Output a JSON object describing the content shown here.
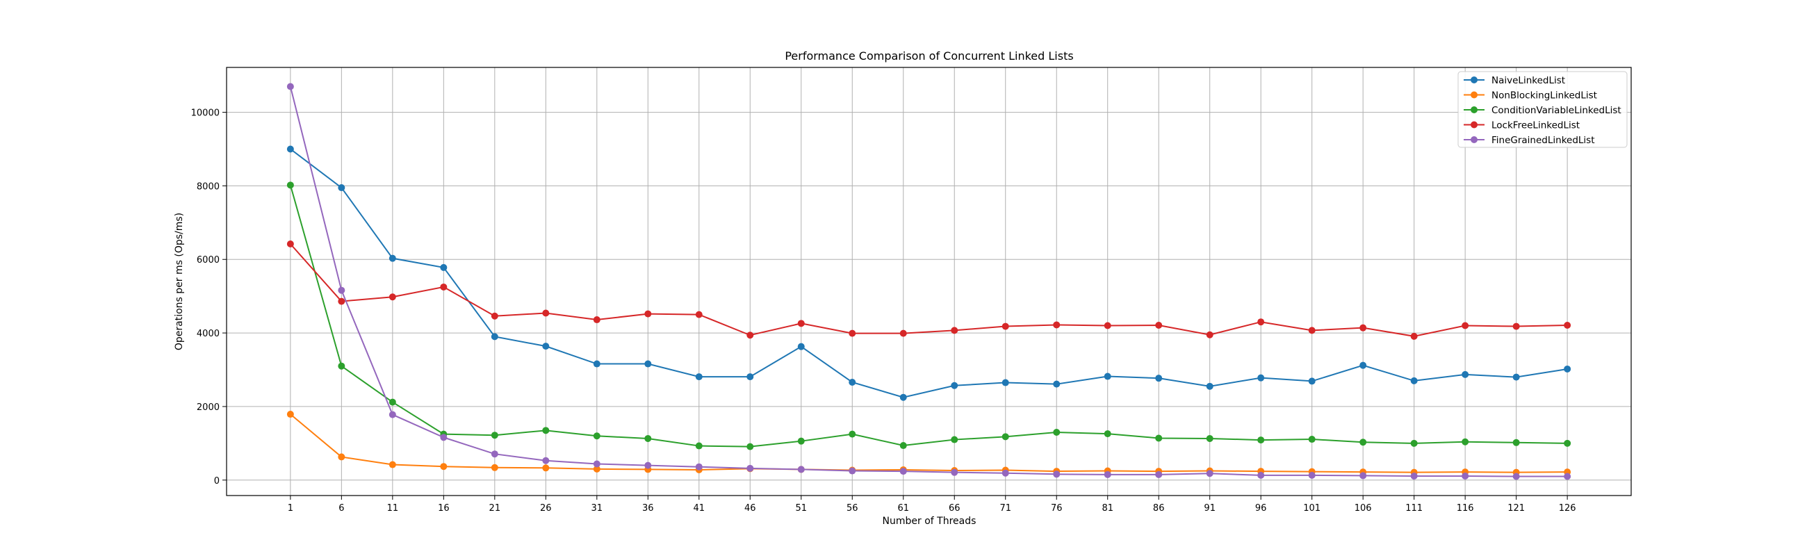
{
  "chart_data": {
    "type": "line",
    "title": "Performance Comparison of Concurrent Linked Lists",
    "xlabel": "Number of Threads",
    "ylabel": "Operations per ms (Ops/ms)",
    "x": [
      1,
      6,
      11,
      16,
      21,
      26,
      31,
      36,
      41,
      46,
      51,
      56,
      61,
      66,
      71,
      76,
      81,
      86,
      91,
      96,
      101,
      106,
      111,
      116,
      121,
      126
    ],
    "xticks": [
      "1",
      "6",
      "11",
      "16",
      "21",
      "26",
      "31",
      "36",
      "41",
      "46",
      "51",
      "56",
      "61",
      "66",
      "71",
      "76",
      "81",
      "86",
      "91",
      "96",
      "101",
      "106",
      "111",
      "116",
      "121",
      "126"
    ],
    "xlim": [
      -5.25,
      132.25
    ],
    "ylim": [
      -420,
      11220
    ],
    "yticks": [
      0,
      2000,
      4000,
      6000,
      8000,
      10000
    ],
    "ytick_labels": [
      "0",
      "2000",
      "4000",
      "6000",
      "8000",
      "10000"
    ],
    "grid": true,
    "legend_position": "top-right",
    "series": [
      {
        "name": "NaiveLinkedList",
        "color": "#1f77b4",
        "values": [
          9000,
          7950,
          6030,
          5780,
          3900,
          3640,
          3160,
          3160,
          2810,
          2810,
          3630,
          2660,
          2250,
          2570,
          2650,
          2610,
          2820,
          2770,
          2550,
          2780,
          2690,
          3120,
          2700,
          2870,
          2800,
          3020
        ]
      },
      {
        "name": "NonBlockingLinkedList",
        "color": "#ff7f0e",
        "values": [
          1790,
          630,
          420,
          370,
          340,
          330,
          300,
          290,
          280,
          310,
          290,
          270,
          280,
          260,
          270,
          240,
          250,
          240,
          250,
          240,
          230,
          220,
          210,
          220,
          210,
          220
        ]
      },
      {
        "name": "ConditionVariableLinkedList",
        "color": "#2ca02c",
        "values": [
          8020,
          3100,
          2120,
          1250,
          1220,
          1350,
          1200,
          1130,
          930,
          910,
          1060,
          1250,
          940,
          1100,
          1180,
          1300,
          1260,
          1140,
          1130,
          1090,
          1110,
          1030,
          1000,
          1040,
          1020,
          1000
        ]
      },
      {
        "name": "LockFreeLinkedList",
        "color": "#d62728",
        "values": [
          6420,
          4860,
          4980,
          5250,
          4460,
          4540,
          4360,
          4520,
          4500,
          3940,
          4260,
          3990,
          3990,
          4070,
          4180,
          4220,
          4200,
          4210,
          3950,
          4300,
          4070,
          4140,
          3910,
          4200,
          4180,
          4210
        ]
      },
      {
        "name": "FineGrainedLinkedList",
        "color": "#9467bd",
        "values": [
          10700,
          5160,
          1780,
          1160,
          710,
          530,
          440,
          400,
          360,
          320,
          290,
          250,
          240,
          210,
          190,
          160,
          150,
          150,
          180,
          130,
          130,
          120,
          110,
          110,
          100,
          100
        ]
      }
    ]
  }
}
